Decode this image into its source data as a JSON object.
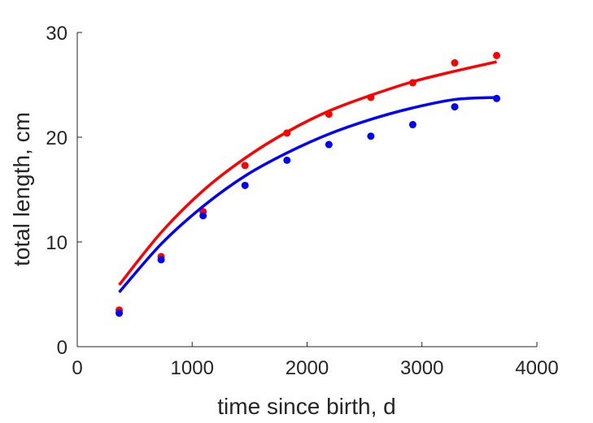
{
  "chart_data": {
    "type": "scatter",
    "title": "",
    "xlabel": "time since birth, d",
    "ylabel": "total length, cm",
    "xlim": [
      0,
      4000
    ],
    "ylim": [
      0,
      30
    ],
    "xticks": [
      0,
      1000,
      2000,
      3000,
      4000
    ],
    "yticks": [
      0,
      10,
      20,
      30
    ],
    "grid": false,
    "series": [
      {
        "color": "#ff0000",
        "points_x": [
          365,
          730,
          1095,
          1460,
          1825,
          2190,
          2555,
          2920,
          3285,
          3650
        ],
        "points_y": [
          3.5,
          8.6,
          12.9,
          17.3,
          20.4,
          22.2,
          23.8,
          25.2,
          27.1,
          27.8
        ],
        "fit_x": [
          365,
          730,
          1095,
          1460,
          1825,
          2190,
          2555,
          2920,
          3285,
          3650
        ],
        "fit_y": [
          5.9,
          10.9,
          14.9,
          18.0,
          20.5,
          22.5,
          24.0,
          25.3,
          26.3,
          27.2
        ]
      },
      {
        "color": "#0000ff",
        "points_x": [
          365,
          730,
          1095,
          1460,
          1825,
          2190,
          2555,
          2920,
          3285,
          3650
        ],
        "points_y": [
          3.2,
          8.3,
          12.5,
          15.4,
          17.8,
          19.3,
          20.1,
          21.2,
          22.9,
          23.7
        ],
        "fit_x": [
          365,
          730,
          1095,
          1460,
          1825,
          2190,
          2555,
          2920,
          3285,
          3650
        ],
        "fit_y": [
          5.2,
          9.8,
          13.4,
          16.3,
          18.5,
          20.3,
          21.7,
          22.8,
          23.6,
          23.8
        ]
      }
    ]
  }
}
